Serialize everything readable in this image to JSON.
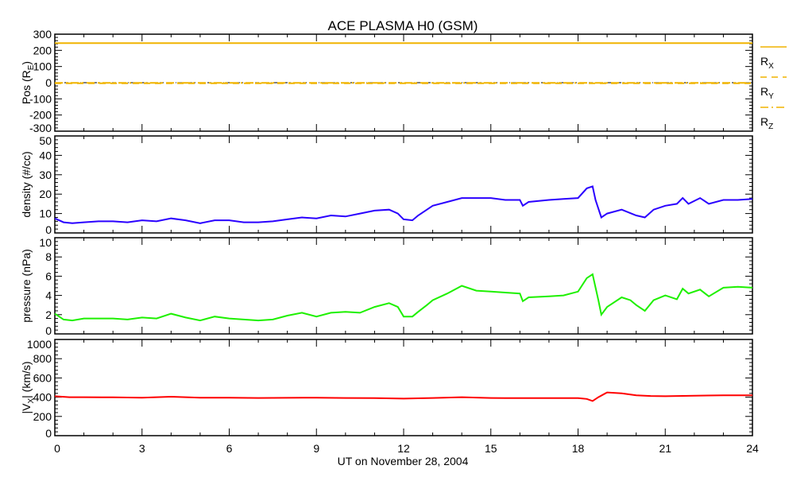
{
  "chart_data": [
    {
      "type": "line",
      "title": "ACE PLASMA H0 (GSM)",
      "xlabel": "UT on November 28, 2004",
      "xlim": [
        0,
        24
      ],
      "xticks": [
        "0",
        "3",
        "6",
        "9",
        "12",
        "15",
        "18",
        "21",
        "24"
      ],
      "panels": [
        {
          "id": "pos",
          "ylabel_main": "Pos (R",
          "ylabel_sub": "E",
          "ylabel_end": ")",
          "ylim": [
            -300,
            300
          ],
          "yticks": [
            "-300",
            "-200",
            "-100",
            "0",
            "100",
            "200",
            "300"
          ],
          "zero_line": true,
          "series": [
            {
              "name": "R",
              "sub": "X",
              "color": "#f0b400",
              "style": "solid",
              "x": [
                0,
                24
              ],
              "y": [
                245,
                245
              ]
            },
            {
              "name": "R",
              "sub": "Y",
              "color": "#f0b400",
              "style": "dashed",
              "x": [
                0,
                24
              ],
              "y": [
                -4,
                -4
              ]
            },
            {
              "name": "R",
              "sub": "Z",
              "color": "#f0b400",
              "style": "dashdot",
              "x": [
                0,
                24
              ],
              "y": [
                -1,
                -1
              ]
            }
          ]
        },
        {
          "id": "density",
          "ylabel_main": "density (#/cc)",
          "ylim": [
            0,
            50
          ],
          "yticks": [
            "0",
            "10",
            "20",
            "30",
            "40",
            "50"
          ],
          "series": [
            {
              "name": "density",
              "color": "#2a00ff",
              "style": "solid",
              "x": [
                0,
                0.3,
                0.6,
                1,
                1.5,
                2,
                2.5,
                3,
                3.5,
                4,
                4.5,
                5,
                5.5,
                6,
                6.5,
                7,
                7.5,
                8,
                8.5,
                9,
                9.5,
                10,
                10.5,
                11,
                11.5,
                11.8,
                12,
                12.3,
                12.5,
                12.8,
                13,
                13.5,
                14,
                14.5,
                15,
                15.5,
                16,
                16.1,
                16.3,
                17,
                17.5,
                18,
                18.3,
                18.5,
                18.6,
                18.8,
                19,
                19.5,
                20,
                20.3,
                20.6,
                21,
                21.4,
                21.6,
                21.8,
                22.2,
                22.5,
                23,
                23.5,
                24
              ],
              "y": [
                7.5,
                5.5,
                5,
                5.5,
                6,
                6,
                5.5,
                6.5,
                6,
                7.5,
                6.5,
                5,
                6.5,
                6.5,
                5.5,
                5.5,
                6,
                7,
                8,
                7.5,
                9,
                8.5,
                10,
                11.5,
                12,
                10,
                7,
                6.5,
                9,
                12,
                14,
                16,
                18,
                18,
                18,
                17,
                17,
                14,
                16,
                17,
                17.5,
                18,
                23,
                24,
                17,
                8,
                10,
                12,
                9,
                8,
                12,
                14,
                15,
                18,
                15,
                18,
                15,
                17,
                17,
                17.5
              ]
            }
          ]
        },
        {
          "id": "pressure",
          "ylabel_main": "pressure (nPa)",
          "ylim": [
            0,
            10
          ],
          "yticks": [
            "0",
            "2",
            "4",
            "6",
            "8",
            "10"
          ],
          "series": [
            {
              "name": "pressure",
              "color": "#1ef000",
              "style": "solid",
              "x": [
                0,
                0.3,
                0.6,
                1,
                1.5,
                2,
                2.5,
                3,
                3.5,
                4,
                4.5,
                5,
                5.5,
                6,
                6.5,
                7,
                7.5,
                8,
                8.5,
                9,
                9.5,
                10,
                10.5,
                11,
                11.5,
                11.8,
                12,
                12.3,
                12.5,
                12.8,
                13,
                13.5,
                14,
                14.5,
                15,
                15.5,
                16,
                16.1,
                16.3,
                17,
                17.5,
                18,
                18.3,
                18.5,
                18.7,
                18.8,
                19,
                19.5,
                19.8,
                20,
                20.3,
                20.6,
                21,
                21.4,
                21.6,
                21.8,
                22.2,
                22.5,
                23,
                23.5,
                24
              ],
              "y": [
                2.1,
                1.5,
                1.4,
                1.6,
                1.6,
                1.6,
                1.5,
                1.7,
                1.6,
                2.1,
                1.7,
                1.4,
                1.8,
                1.6,
                1.5,
                1.4,
                1.5,
                1.9,
                2.2,
                1.8,
                2.2,
                2.3,
                2.2,
                2.8,
                3.2,
                2.8,
                1.8,
                1.8,
                2.3,
                3.0,
                3.5,
                4.2,
                5.0,
                4.5,
                4.4,
                4.3,
                4.2,
                3.4,
                3.8,
                3.9,
                4.0,
                4.4,
                5.8,
                6.2,
                3.5,
                2.0,
                2.8,
                3.8,
                3.5,
                3.0,
                2.4,
                3.5,
                4.0,
                3.6,
                4.7,
                4.2,
                4.6,
                3.9,
                4.8,
                4.9,
                4.8
              ]
            }
          ]
        },
        {
          "id": "vx",
          "ylabel_main": "|V",
          "ylabel_sub": "X",
          "ylabel_end": "| (km/s)",
          "ylim": [
            0,
            1000
          ],
          "yticks": [
            "0",
            "200",
            "400",
            "600",
            "800",
            "1000"
          ],
          "series": [
            {
              "name": "|Vx|",
              "color": "#ff0000",
              "style": "solid",
              "x": [
                0,
                0.5,
                1,
                2,
                3,
                4,
                5,
                6,
                7,
                8,
                9,
                10,
                11,
                12,
                13,
                14,
                15,
                16,
                17,
                18,
                18.3,
                18.5,
                18.7,
                19,
                19.5,
                20,
                20.5,
                21,
                22,
                23,
                24
              ],
              "y": [
                410,
                400,
                400,
                398,
                395,
                405,
                395,
                395,
                392,
                393,
                395,
                392,
                390,
                385,
                392,
                400,
                392,
                390,
                390,
                390,
                382,
                360,
                400,
                450,
                440,
                420,
                412,
                410,
                415,
                420,
                420
              ]
            }
          ]
        }
      ]
    }
  ]
}
